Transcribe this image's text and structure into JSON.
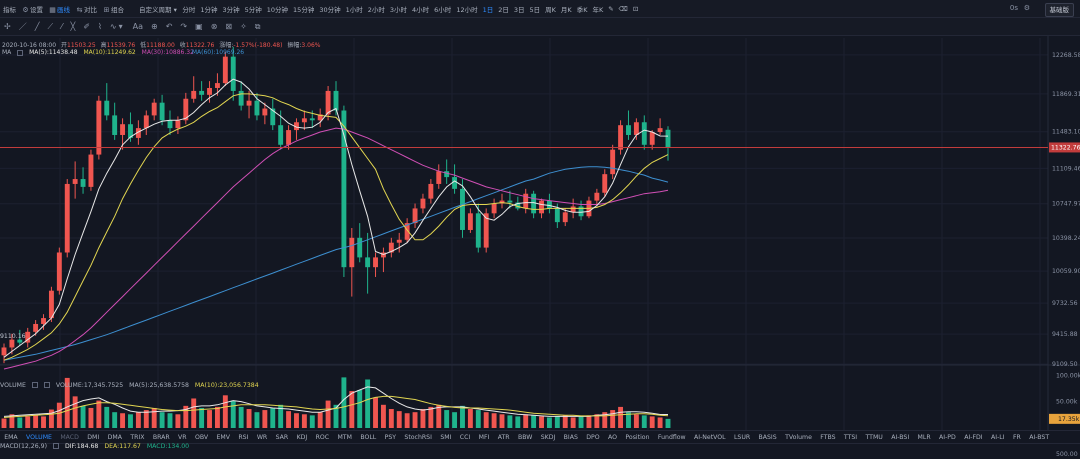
{
  "topbar": {
    "left_items": [
      {
        "icon": "",
        "label": "指标"
      },
      {
        "icon": "⚙",
        "label": "设置"
      },
      {
        "icon": "▦",
        "label": "画线"
      },
      {
        "icon": "⇆",
        "label": "对比"
      },
      {
        "icon": "⊞",
        "label": "组合"
      }
    ],
    "active_item_index": 2,
    "custom_period_label": "自定义周期",
    "timeframes": [
      "分时",
      "1分钟",
      "3分钟",
      "5分钟",
      "10分钟",
      "15分钟",
      "30分钟",
      "1小时",
      "2小时",
      "3小时",
      "4小时",
      "6小时",
      "12小时",
      "1日",
      "2日",
      "3日",
      "5日",
      "周K",
      "月K",
      "季K",
      "年K"
    ],
    "active_timeframe_index": 13,
    "extra_icons": [
      "✎",
      "⌫",
      "⊡"
    ],
    "right_text": "0s",
    "right_button_label": "基础版"
  },
  "toolbar": {
    "tools": [
      "✢",
      "／",
      "╱",
      "⟋",
      "⁄",
      "╳",
      "✐",
      "⌇",
      "∿",
      "Aa",
      "⊕",
      "↶",
      "↷",
      "▣",
      "⊗",
      "⊠",
      "✧",
      "⧉"
    ]
  },
  "ohlc": {
    "date": "2020-10-16 08:00",
    "open_label": "开",
    "open": "11503.25",
    "high_label": "高",
    "high": "11539.76",
    "low_label": "低",
    "low": "11188.00",
    "close_label": "收",
    "close": "11322.76",
    "change_label": "涨幅",
    "change": "-1.57%(-180.48)",
    "amplitude_label": "振幅",
    "amplitude": "3.06%"
  },
  "ma": {
    "name": "MA",
    "ma5": "MA(5):11438.48",
    "ma10": "MA(10):11249.62",
    "ma30": "MA(30):10886.32",
    "ma60": "MA(60):10969.26"
  },
  "colors": {
    "up": "#f05650",
    "down": "#1fb38c",
    "ma5": "#e8e8e8",
    "ma10": "#e2d651",
    "ma30": "#d04fb5",
    "ma60": "#3d8fd0",
    "current_price": "#c23c3c",
    "vol_last": "#e8a33c"
  },
  "price_axis": {
    "ticks": [
      "12268.58",
      "11869.31",
      "11483.10",
      "11109.46",
      "10747.97",
      "10398.24",
      "10059.90",
      "9732.56",
      "9415.88",
      "9109.50"
    ],
    "current_price": "11322.76",
    "low_marker": "9110.16"
  },
  "volume": {
    "label": "VOLUME",
    "value": "VOLUME:17,345.7525",
    "ma5": "MA(5):25,638.5758",
    "ma10": "MA(10):23,056.7384",
    "ticks": [
      "100.00k",
      "50.00k"
    ],
    "last": "17.35k"
  },
  "indicators": {
    "items": [
      "EMA",
      "VOLUME",
      "MACD",
      "DMI",
      "DMA",
      "TRIX",
      "BRAR",
      "VR",
      "OBV",
      "EMV",
      "RSI",
      "WR",
      "SAR",
      "KDJ",
      "ROC",
      "MTM",
      "BOLL",
      "PSY",
      "StochRSI",
      "SMI",
      "CCI",
      "MFI",
      "ATR",
      "BBW",
      "SKDJ",
      "BIAS",
      "DPO",
      "AO",
      "Position",
      "Fundflow",
      "AI-NetVOL",
      "LSUR",
      "BASIS",
      "TVolume",
      "FTBS",
      "TTSI",
      "TTMU",
      "AI-BSI",
      "MLR",
      "AI-PD",
      "AI-FDI",
      "AI-LI",
      "FR",
      "AI-BST"
    ],
    "active_index": 1,
    "dim_index": 2
  },
  "macd": {
    "name": "MACD(12,26,9)",
    "dif": "DIF:184.68",
    "dea": "DEA:117.67",
    "macd": "MACD:134.00",
    "axis_tick": "500.00"
  },
  "chart_data": {
    "type": "candlestick",
    "last_date": "2020-10-16",
    "ylim": [
      9050,
      12420
    ],
    "candles": [
      [
        9200,
        9320,
        9120,
        9280
      ],
      [
        9280,
        9420,
        9210,
        9360
      ],
      [
        9360,
        9460,
        9300,
        9330
      ],
      [
        9330,
        9480,
        9280,
        9440
      ],
      [
        9440,
        9560,
        9400,
        9520
      ],
      [
        9520,
        9620,
        9460,
        9580
      ],
      [
        9580,
        9900,
        9540,
        9860
      ],
      [
        9860,
        10300,
        9820,
        10250
      ],
      [
        10250,
        11000,
        10200,
        10950
      ],
      [
        10950,
        11180,
        10800,
        11000
      ],
      [
        11000,
        11120,
        10850,
        10920
      ],
      [
        10920,
        11300,
        10880,
        11250
      ],
      [
        11250,
        11850,
        11200,
        11800
      ],
      [
        11800,
        11980,
        11600,
        11650
      ],
      [
        11650,
        11780,
        11400,
        11450
      ],
      [
        11450,
        11620,
        11300,
        11560
      ],
      [
        11560,
        11680,
        11380,
        11420
      ],
      [
        11420,
        11600,
        11350,
        11520
      ],
      [
        11520,
        11700,
        11450,
        11650
      ],
      [
        11650,
        11820,
        11600,
        11780
      ],
      [
        11780,
        11860,
        11550,
        11600
      ],
      [
        11600,
        11700,
        11450,
        11520
      ],
      [
        11520,
        11640,
        11460,
        11600
      ],
      [
        11600,
        11880,
        11560,
        11820
      ],
      [
        11820,
        12050,
        11780,
        11900
      ],
      [
        11900,
        12000,
        11800,
        11860
      ],
      [
        11860,
        12000,
        11780,
        11930
      ],
      [
        11930,
        12080,
        11850,
        11980
      ],
      [
        11980,
        12300,
        11950,
        12250
      ],
      [
        12250,
        12350,
        11800,
        11900
      ],
      [
        11900,
        12000,
        11700,
        11750
      ],
      [
        11750,
        11900,
        11620,
        11800
      ],
      [
        11800,
        11880,
        11600,
        11650
      ],
      [
        11650,
        11780,
        11560,
        11720
      ],
      [
        11720,
        11820,
        11500,
        11550
      ],
      [
        11550,
        11700,
        11300,
        11350
      ],
      [
        11350,
        11550,
        11300,
        11500
      ],
      [
        11500,
        11620,
        11400,
        11580
      ],
      [
        11580,
        11700,
        11500,
        11620
      ],
      [
        11620,
        11700,
        11520,
        11600
      ],
      [
        11600,
        11720,
        11530,
        11660
      ],
      [
        11660,
        11950,
        11600,
        11900
      ],
      [
        11900,
        12000,
        11650,
        11700
      ],
      [
        11700,
        11750,
        10000,
        10100
      ],
      [
        10100,
        10500,
        9800,
        10400
      ],
      [
        10400,
        10550,
        10150,
        10200
      ],
      [
        10200,
        10450,
        9830,
        10100
      ],
      [
        10100,
        10250,
        10000,
        10200
      ],
      [
        10200,
        10300,
        10050,
        10250
      ],
      [
        10250,
        10400,
        10200,
        10350
      ],
      [
        10350,
        10450,
        10250,
        10380
      ],
      [
        10380,
        10600,
        10350,
        10550
      ],
      [
        10550,
        10750,
        10500,
        10700
      ],
      [
        10700,
        10850,
        10650,
        10800
      ],
      [
        10800,
        11000,
        10750,
        10950
      ],
      [
        10950,
        11150,
        10900,
        11080
      ],
      [
        11080,
        11200,
        10950,
        11020
      ],
      [
        11020,
        11150,
        10850,
        10900
      ],
      [
        10900,
        11000,
        10400,
        10480
      ],
      [
        10480,
        10700,
        10450,
        10650
      ],
      [
        10650,
        10750,
        10250,
        10300
      ],
      [
        10300,
        10700,
        10250,
        10650
      ],
      [
        10650,
        10800,
        10600,
        10750
      ],
      [
        10750,
        10850,
        10700,
        10780
      ],
      [
        10780,
        10880,
        10700,
        10760
      ],
      [
        10760,
        10820,
        10680,
        10700
      ],
      [
        10700,
        10900,
        10650,
        10850
      ],
      [
        10850,
        10880,
        10600,
        10650
      ],
      [
        10650,
        10800,
        10600,
        10780
      ],
      [
        10780,
        10850,
        10650,
        10700
      ],
      [
        10700,
        10750,
        10500,
        10560
      ],
      [
        10560,
        10700,
        10520,
        10660
      ],
      [
        10660,
        10800,
        10600,
        10720
      ],
      [
        10720,
        10780,
        10580,
        10620
      ],
      [
        10620,
        10820,
        10600,
        10780
      ],
      [
        10780,
        10900,
        10720,
        10860
      ],
      [
        10860,
        11100,
        10820,
        11050
      ],
      [
        11050,
        11350,
        11000,
        11300
      ],
      [
        11300,
        11600,
        11250,
        11550
      ],
      [
        11550,
        11700,
        11400,
        11450
      ],
      [
        11450,
        11620,
        11400,
        11580
      ],
      [
        11580,
        11650,
        11300,
        11350
      ],
      [
        11350,
        11500,
        11300,
        11480
      ],
      [
        11480,
        11620,
        11450,
        11520
      ],
      [
        11503.25,
        11539.76,
        11188.0,
        11322.76
      ]
    ],
    "ma5": [
      9180,
      9240,
      9300,
      9360,
      9420,
      9500,
      9580,
      9720,
      9980,
      10230,
      10450,
      10670,
      10900,
      11060,
      11200,
      11350,
      11430,
      11480,
      11520,
      11560,
      11590,
      11600,
      11600,
      11620,
      11680,
      11760,
      11830,
      11880,
      11960,
      12020,
      11990,
      11920,
      11820,
      11760,
      11700,
      11640,
      11570,
      11530,
      11520,
      11530,
      11580,
      11680,
      11720,
      11450,
      11150,
      10880,
      10620,
      10260,
      10230,
      10260,
      10300,
      10350,
      10450,
      10580,
      10700,
      10820,
      10920,
      10980,
      10930,
      10820,
      10690,
      10600,
      10580,
      10640,
      10720,
      10750,
      10760,
      10760,
      10740,
      10730,
      10710,
      10680,
      10660,
      10660,
      10670,
      10730,
      10820,
      10960,
      11150,
      11330,
      11450,
      11500,
      11480,
      11440,
      11438.48
    ],
    "ma10": [
      9150,
      9180,
      9220,
      9260,
      9310,
      9370,
      9430,
      9520,
      9640,
      9800,
      9960,
      10120,
      10300,
      10460,
      10620,
      10800,
      10950,
      11090,
      11220,
      11330,
      11420,
      11470,
      11510,
      11540,
      11580,
      11640,
      11690,
      11730,
      11790,
      11850,
      11870,
      11870,
      11860,
      11850,
      11830,
      11790,
      11760,
      11720,
      11690,
      11670,
      11650,
      11640,
      11630,
      11540,
      11430,
      11320,
      11210,
      11100,
      10900,
      10740,
      10590,
      10480,
      10380,
      10380,
      10440,
      10520,
      10610,
      10690,
      10730,
      10740,
      10740,
      10740,
      10750,
      10760,
      10750,
      10720,
      10700,
      10690,
      10690,
      10700,
      10700,
      10700,
      10700,
      10700,
      10700,
      10710,
      10740,
      10790,
      10860,
      10940,
      11030,
      11110,
      11170,
      11210,
      11249.62
    ],
    "ma30": [
      9060,
      9080,
      9100,
      9120,
      9140,
      9170,
      9200,
      9240,
      9290,
      9350,
      9410,
      9480,
      9560,
      9640,
      9720,
      9800,
      9880,
      9960,
      10040,
      10120,
      10200,
      10280,
      10360,
      10440,
      10520,
      10600,
      10680,
      10760,
      10840,
      10920,
      10990,
      11060,
      11130,
      11200,
      11260,
      11310,
      11350,
      11390,
      11420,
      11450,
      11480,
      11500,
      11520,
      11510,
      11480,
      11450,
      11420,
      11380,
      11340,
      11300,
      11260,
      11220,
      11180,
      11140,
      11110,
      11080,
      11060,
      11040,
      11010,
      10980,
      10950,
      10920,
      10900,
      10880,
      10860,
      10840,
      10820,
      10800,
      10790,
      10780,
      10770,
      10760,
      10750,
      10740,
      10740,
      10740,
      10750,
      10770,
      10790,
      10810,
      10830,
      10850,
      10860,
      10870,
      10886.32
    ],
    "ma60": [
      9150,
      9165,
      9180,
      9195,
      9210,
      9230,
      9250,
      9270,
      9290,
      9310,
      9335,
      9360,
      9385,
      9410,
      9440,
      9470,
      9500,
      9530,
      9560,
      9590,
      9620,
      9650,
      9680,
      9710,
      9740,
      9770,
      9800,
      9830,
      9860,
      9890,
      9920,
      9950,
      9980,
      10010,
      10040,
      10070,
      10100,
      10130,
      10160,
      10190,
      10220,
      10250,
      10280,
      10300,
      10320,
      10350,
      10380,
      10410,
      10440,
      10470,
      10500,
      10530,
      10560,
      10590,
      10620,
      10650,
      10680,
      10710,
      10740,
      10770,
      10800,
      10830,
      10860,
      10890,
      10920,
      10950,
      10980,
      11000,
      11030,
      11060,
      11080,
      11100,
      11110,
      11120,
      11125,
      11125,
      11120,
      11110,
      11095,
      11080,
      11060,
      11040,
      11010,
      10990,
      10969.26
    ],
    "volume_values": [
      18,
      26,
      20,
      22,
      24,
      22,
      35,
      48,
      95,
      60,
      42,
      38,
      52,
      40,
      30,
      28,
      26,
      30,
      34,
      38,
      30,
      28,
      26,
      42,
      56,
      38,
      34,
      40,
      62,
      52,
      40,
      36,
      30,
      34,
      38,
      44,
      32,
      28,
      26,
      24,
      30,
      52,
      44,
      96,
      70,
      72,
      92,
      58,
      44,
      36,
      32,
      28,
      30,
      36,
      40,
      44,
      34,
      30,
      42,
      36,
      34,
      30,
      28,
      26,
      24,
      22,
      26,
      24,
      22,
      20,
      22,
      24,
      20,
      22,
      24,
      26,
      30,
      34,
      40,
      30,
      26,
      24,
      22,
      20,
      17.35
    ],
    "volume_ma5": [
      22,
      23,
      24,
      25,
      26,
      27,
      28,
      33,
      40,
      46,
      52,
      55,
      57,
      50,
      45,
      38,
      32,
      30,
      30,
      31,
      32,
      32,
      33,
      35,
      40,
      42,
      42,
      44,
      48,
      52,
      50,
      46,
      42,
      40,
      38,
      37,
      36,
      34,
      32,
      30,
      30,
      34,
      38,
      54,
      66,
      72,
      78,
      76,
      66,
      56,
      47,
      40,
      36,
      34,
      36,
      39,
      40,
      40,
      40,
      38,
      36,
      34,
      32,
      30,
      28,
      26,
      25,
      24,
      23,
      22,
      22,
      22,
      22,
      22,
      22,
      24,
      25,
      27,
      30,
      31,
      31,
      30,
      28,
      25.6,
      25.64
    ],
    "volume_ma10": [
      20,
      21,
      22,
      23,
      24,
      25,
      26,
      28,
      33,
      38,
      42,
      45,
      48,
      48,
      47,
      45,
      43,
      41,
      39,
      37,
      35,
      34,
      33,
      33,
      34,
      35,
      36,
      37,
      40,
      42,
      44,
      44,
      44,
      44,
      43,
      42,
      41,
      40,
      38,
      36,
      35,
      36,
      37,
      40,
      44,
      48,
      54,
      58,
      60,
      60,
      58,
      56,
      54,
      50,
      46,
      43,
      41,
      39,
      38,
      38,
      38,
      37,
      36,
      35,
      34,
      32,
      30,
      28,
      27,
      26,
      25,
      24,
      24,
      23,
      23,
      23,
      23,
      24,
      25,
      26,
      27,
      27,
      26,
      24,
      23.06
    ]
  }
}
